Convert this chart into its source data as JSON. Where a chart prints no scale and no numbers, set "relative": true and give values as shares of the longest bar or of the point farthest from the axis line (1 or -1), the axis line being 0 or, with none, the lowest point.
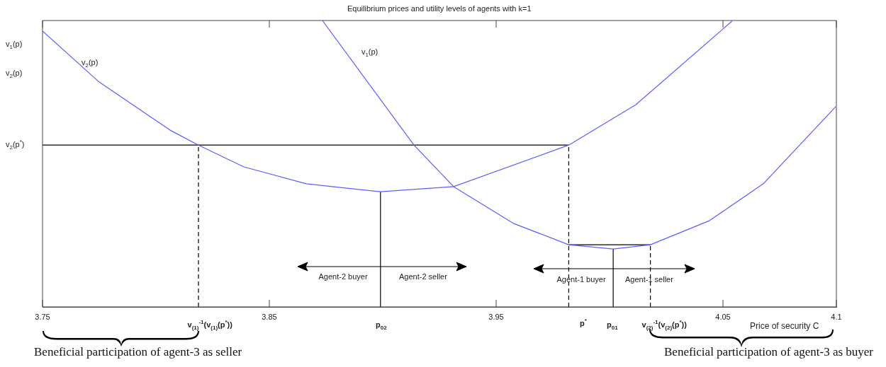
{
  "chart_data": {
    "type": "line",
    "title": "Equilibrium prices and utility levels of agents with k=1",
    "xlabel": "Price of security C",
    "relative": true,
    "xlim": [
      3.75,
      4.1
    ],
    "xticks": [
      3.75,
      3.85,
      3.95,
      4.05,
      4.1
    ],
    "marker": "none",
    "legend": false,
    "grid": false,
    "series": [
      {
        "name": "v$_{2}$(p)",
        "color": "#5c5cff",
        "x": [
          3.75,
          3.775,
          3.80625,
          3.81875,
          3.83875,
          3.86625,
          3.899,
          3.93125,
          3.982,
          4.0116,
          4.054
        ],
        "values": [
          0.963,
          0.785,
          0.617,
          0.565,
          0.489,
          0.43,
          0.402,
          0.42,
          0.565,
          0.706,
          0.998
        ]
      },
      {
        "name": "v$_{1}$(p)",
        "color": "#5c5cff",
        "x": [
          3.8734,
          3.91375,
          3.93125,
          3.9578,
          3.982,
          4.0016,
          4.018,
          4.044,
          4.0678,
          4.0997
        ],
        "values": [
          1.0,
          0.565,
          0.42,
          0.291,
          0.217,
          0.202,
          0.217,
          0.301,
          0.43,
          0.699
        ]
      },
      {
        "color": "#000000",
        "x": [
          3.75,
          3.982
        ],
        "values": [
          0.565,
          0.565
        ]
      },
      {
        "color": "#000000",
        "x": [
          3.982,
          4.018
        ],
        "values": [
          0.217,
          0.217
        ]
      },
      {
        "color": "#000000",
        "x": [
          3.899,
          3.899
        ],
        "values": [
          0,
          0.402
        ]
      },
      {
        "color": "#000000",
        "x": [
          4.0016,
          4.0016
        ],
        "values": [
          0,
          0.202
        ]
      },
      {
        "color": "#000000",
        "line_style": "dashed",
        "x": [
          3.81875,
          3.81875
        ],
        "values": [
          0,
          0.565
        ]
      },
      {
        "color": "#000000",
        "line_style": "dashed",
        "x": [
          3.982,
          3.982
        ],
        "values": [
          0,
          0.565
        ]
      },
      {
        "color": "#000000",
        "line_style": "dashed",
        "x": [
          4.018,
          4.018
        ],
        "values": [
          0,
          0.217
        ]
      }
    ],
    "annotations": [
      "v$_{1}$(p)",
      "v$_{2}$(p)",
      "v$_{2}$(p$^{*}$)",
      "v$_{(1)}$$^{-1}$(v$_{(1)}$(p$^{*}$))",
      "p$_{02}$",
      "p$^{*}$",
      "p$_{01}$",
      "v$_{(2)}$$^{-1}$(v$_{(2)}$(p$^{*}$))",
      "Agent-2 buyer",
      "Agent-2 seller",
      "Agent-1 buyer",
      "Agent-1 seller",
      "Beneficial participation of agent-3 as seller",
      "Beneficial participation of agent-3 as buyer"
    ]
  }
}
